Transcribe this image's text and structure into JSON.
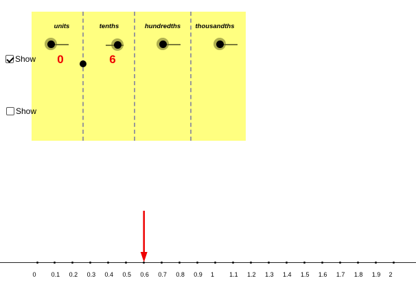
{
  "colors": {
    "panel": "#ffff80",
    "digit": "#ee0000",
    "arrow": "#ee0000"
  },
  "columns": [
    {
      "title": "units",
      "digit": "0",
      "show_digit": true
    },
    {
      "title": "tenths",
      "digit": "6",
      "show_digit": true
    },
    {
      "title": "hundredths",
      "digit": "",
      "show_digit": false
    },
    {
      "title": "thousandths",
      "digit": "",
      "show_digit": false
    }
  ],
  "checkboxes": [
    {
      "label": "Show",
      "checked": true
    },
    {
      "label": "Show",
      "checked": false
    }
  ],
  "number_line": {
    "labels": [
      "0",
      "0.1",
      "0.2",
      "0.3",
      "0.4",
      "0.5",
      "0.6",
      "0.7",
      "0.8",
      "0.9",
      "1",
      "1.1",
      "1.2",
      "1.3",
      "1.4",
      "1.5",
      "1.6",
      "1.7",
      "1.8",
      "1.9",
      "2"
    ],
    "arrow_value": 0.6
  },
  "icons": {
    "decimal_point": "dot-icon",
    "arrow": "down-arrow-icon"
  }
}
